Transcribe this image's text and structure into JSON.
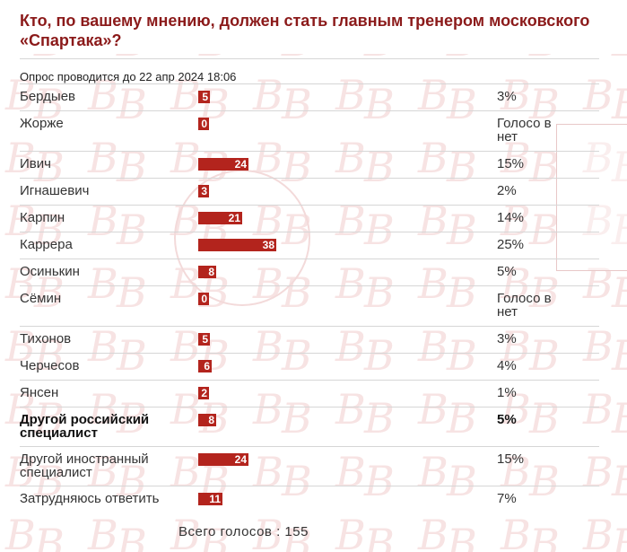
{
  "poll": {
    "title": "Кто, по вашему мнению, должен стать главным тренером москов­ского «Спартака»?",
    "deadline": "Опрос проводится до 22 апр 2024 18:06",
    "total": "Всего голосов : 155",
    "accent_color": "#b3241d",
    "title_color": "#8b1a1a",
    "max_votes": 38,
    "options": [
      {
        "name": "Бердыев",
        "votes": "5",
        "percent": "3%"
      },
      {
        "name": "Жорже",
        "votes": "0",
        "percent": "Голосо в нет"
      },
      {
        "name": "Ивич",
        "votes": "24",
        "percent": "15%"
      },
      {
        "name": "Игнашевич",
        "votes": "3",
        "percent": "2%"
      },
      {
        "name": "Карпин",
        "votes": "21",
        "percent": "14%"
      },
      {
        "name": "Каррера",
        "votes": "38",
        "percent": "25%"
      },
      {
        "name": "Осинькин",
        "votes": "8",
        "percent": "5%"
      },
      {
        "name": "Сёмин",
        "votes": "0",
        "percent": "Голосо в нет"
      },
      {
        "name": "Тихонов",
        "votes": "5",
        "percent": "3%"
      },
      {
        "name": "Черчесов",
        "votes": "6",
        "percent": "4%"
      },
      {
        "name": "Янсен",
        "votes": "2",
        "percent": "1%"
      },
      {
        "name": "Другой российский специалист",
        "votes": "8",
        "percent": "5%",
        "bold": true
      },
      {
        "name": "Другой иностранный специалист",
        "votes": "24",
        "percent": "15%"
      },
      {
        "name": "Затрудняюсь ответить",
        "votes": "11",
        "percent": "7%"
      }
    ]
  }
}
